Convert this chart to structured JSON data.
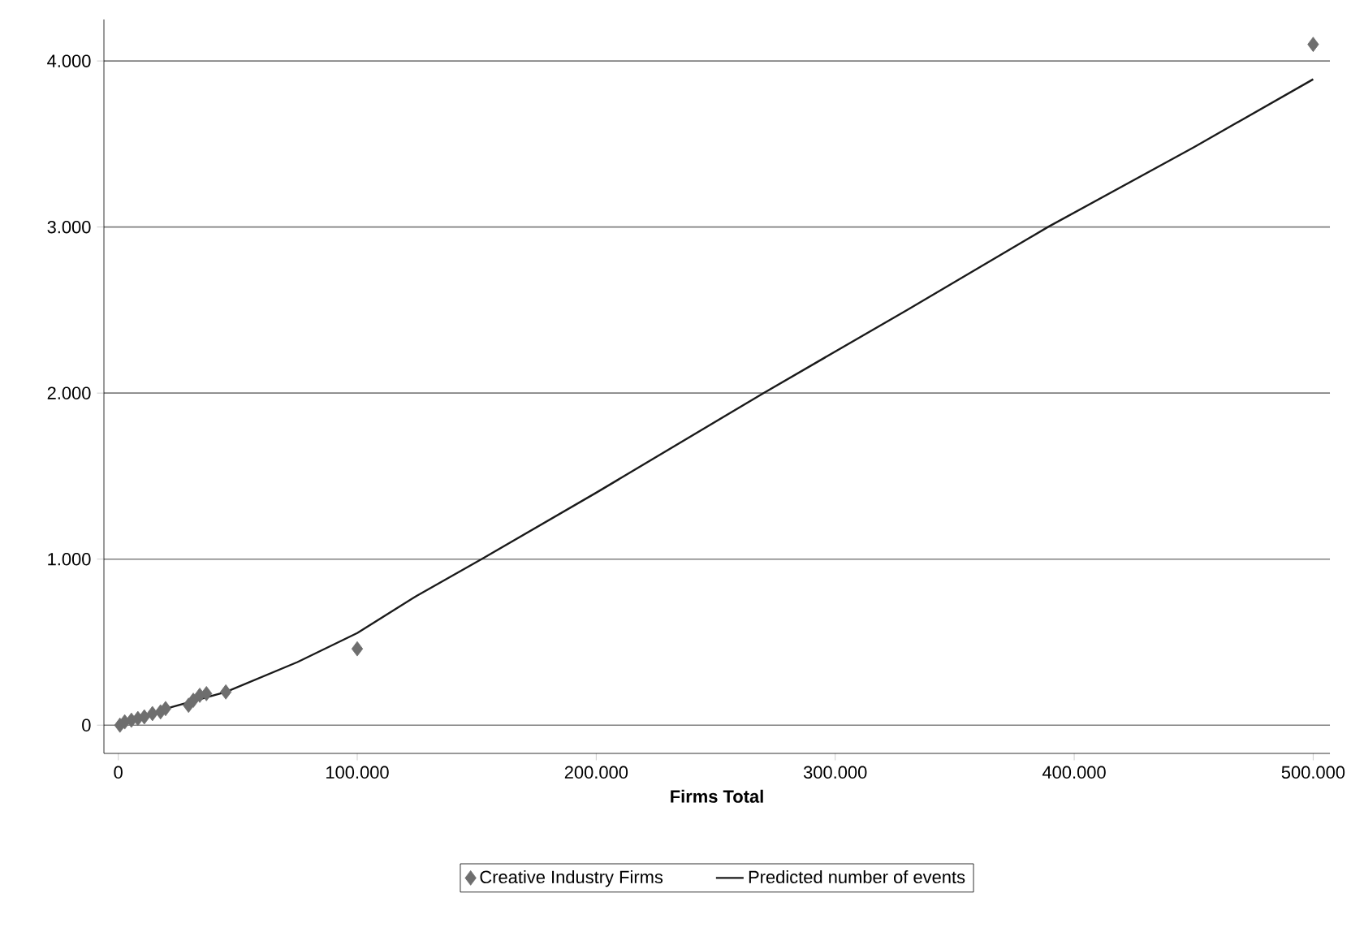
{
  "chart_data": {
    "type": "scatter",
    "xlabel": "Firms Total",
    "xlim": [
      -6000,
      507000
    ],
    "ylim": [
      -170,
      4250
    ],
    "xticks": [
      {
        "value": 0,
        "label": "0"
      },
      {
        "value": 100000,
        "label": "100.000"
      },
      {
        "value": 200000,
        "label": "200.000"
      },
      {
        "value": 300000,
        "label": "300.000"
      },
      {
        "value": 400000,
        "label": "400.000"
      },
      {
        "value": 500000,
        "label": "500.000"
      }
    ],
    "yticks": [
      {
        "value": 0,
        "label": "0"
      },
      {
        "value": 1000,
        "label": "1.000"
      },
      {
        "value": 2000,
        "label": "2.000"
      },
      {
        "value": 3000,
        "label": "3.000"
      },
      {
        "value": 4000,
        "label": "4.000"
      }
    ],
    "grid": "y",
    "legend": "bottom",
    "series": [
      {
        "name": "Creative Industry Firms",
        "marker": "diamond",
        "color": "#6e6e6e",
        "x": [
          700,
          2700,
          5500,
          8200,
          10900,
          14300,
          17700,
          19800,
          29400,
          31400,
          34100,
          36900,
          45000,
          100000,
          500000
        ],
        "values": [
          0,
          20,
          30,
          40,
          50,
          70,
          80,
          100,
          120,
          150,
          180,
          190,
          200,
          460,
          4100
        ]
      },
      {
        "name": "Predicted number of events",
        "type": "line",
        "marker": "none",
        "line_style": "solid",
        "color": "#1a1a1a",
        "x": [
          0,
          20000,
          45000,
          75000,
          100000,
          125000,
          152000,
          200000,
          270000,
          330000,
          389000,
          450000,
          500000
        ],
        "values": [
          0,
          100,
          200,
          380,
          555,
          780,
          1000,
          1400,
          2000,
          2500,
          3000,
          3480,
          3890
        ]
      }
    ]
  }
}
